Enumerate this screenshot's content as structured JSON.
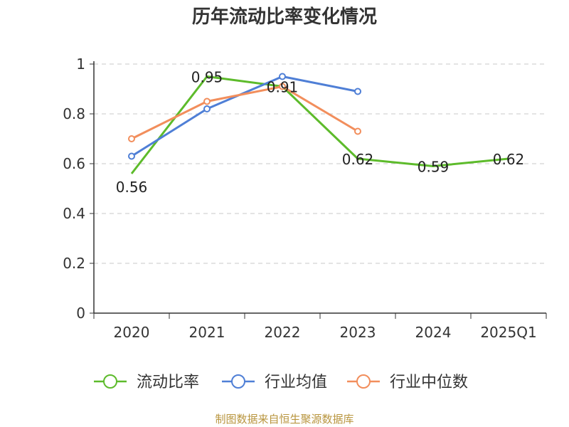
{
  "chart_data": {
    "type": "line",
    "title": "历年流动比率变化情况",
    "categories": [
      "2020",
      "2021",
      "2022",
      "2023",
      "2024",
      "2025Q1"
    ],
    "y_ticks": [
      "0",
      "0.2",
      "0.4",
      "0.6",
      "0.8",
      "1"
    ],
    "ylim": [
      0,
      1
    ],
    "grid": true,
    "legend_position": "bottom",
    "series": [
      {
        "name": "流动比率",
        "color": "#5dbb2b",
        "values": [
          0.56,
          0.95,
          0.91,
          0.62,
          0.59,
          0.62
        ],
        "labels": [
          "0.56",
          "0.95",
          "0.91",
          "0.62",
          "0.59",
          "0.62"
        ],
        "markers": false
      },
      {
        "name": "行业均值",
        "color": "#4f7fd6",
        "values": [
          0.63,
          0.82,
          0.95,
          0.89,
          null,
          null
        ],
        "markers": true
      },
      {
        "name": "行业中位数",
        "color": "#f28e5c",
        "values": [
          0.7,
          0.85,
          0.91,
          0.73,
          null,
          null
        ],
        "markers": true
      }
    ]
  },
  "footer": {
    "source": "制图数据来自恒生聚源数据库"
  }
}
